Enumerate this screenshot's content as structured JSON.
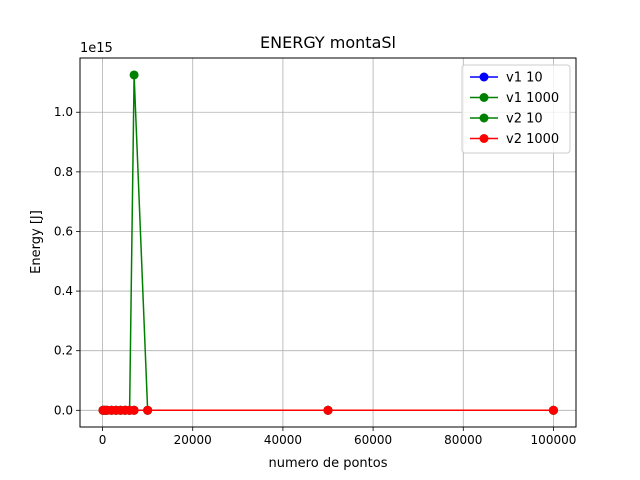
{
  "chart_data": {
    "type": "line",
    "title": "ENERGY montaSl",
    "xlabel": "numero de pontos",
    "ylabel": "Energy [J]",
    "y_offset_label": "1e15",
    "xlim": [
      -5000,
      105000
    ],
    "ylim": [
      -0.056,
      1.182
    ],
    "x_ticks": [
      0,
      20000,
      40000,
      60000,
      80000,
      100000
    ],
    "x_tick_labels": [
      "0",
      "20000",
      "40000",
      "60000",
      "80000",
      "100000"
    ],
    "y_ticks": [
      0.0,
      0.2,
      0.4,
      0.6,
      0.8,
      1.0
    ],
    "y_tick_labels": [
      "0.0",
      "0.2",
      "0.4",
      "0.6",
      "0.8",
      "1.0"
    ],
    "grid": true,
    "legend_position": "top-right",
    "series": [
      {
        "name": "v1 10",
        "color": "#0000ff",
        "x": [
          100,
          500,
          1000,
          2000,
          3000,
          4000,
          5000,
          6000,
          7000,
          10000,
          50000,
          100000
        ],
        "y": [
          0,
          0,
          0,
          0,
          0,
          0,
          0,
          0,
          0,
          0,
          0,
          0
        ]
      },
      {
        "name": "v1 1000",
        "color": "#008000",
        "x": [
          100,
          500,
          1000,
          2000,
          3000,
          4000,
          5000,
          6000,
          7000,
          10000,
          50000,
          100000
        ],
        "y": [
          0,
          0,
          0,
          0,
          0,
          0,
          0,
          0,
          0,
          0,
          0,
          0
        ]
      },
      {
        "name": "v2 10",
        "color": "#008000",
        "x": [
          100,
          500,
          1000,
          2000,
          3000,
          4000,
          5000,
          6000,
          7000,
          10000,
          50000,
          100000
        ],
        "y": [
          0,
          0,
          0,
          0,
          0,
          0,
          0,
          0,
          1.125,
          0,
          0,
          0
        ]
      },
      {
        "name": "v2 1000",
        "color": "#ff0000",
        "x": [
          100,
          500,
          1000,
          2000,
          3000,
          4000,
          5000,
          6000,
          7000,
          10000,
          50000,
          100000
        ],
        "y": [
          0,
          0,
          0,
          0,
          0,
          0,
          0,
          0,
          0,
          0,
          0,
          0
        ]
      }
    ]
  }
}
